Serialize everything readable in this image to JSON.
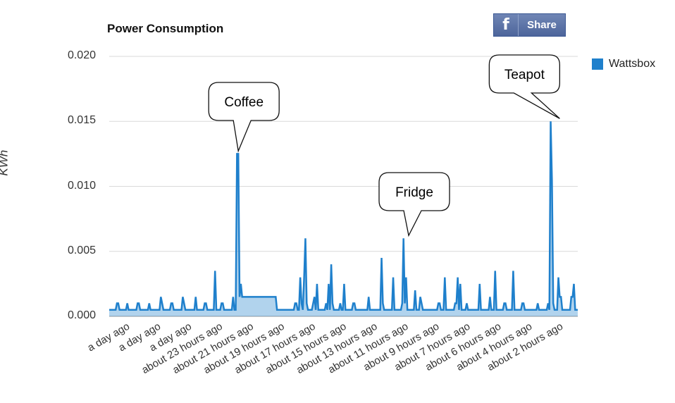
{
  "chart_data": {
    "type": "line",
    "title": "Power Consumption",
    "ylabel": "KWh",
    "xlabel": "",
    "ylim": [
      0,
      0.02
    ],
    "yticks": [
      "0.000",
      "0.005",
      "0.010",
      "0.015",
      "0.020"
    ],
    "xticks": [
      "a day ago",
      "a day ago",
      "a day ago",
      "about 23 hours ago",
      "about 21 hours ago",
      "about 19 hours ago",
      "about 17 hours ago",
      "about 15 hours ago",
      "about 13 hours ago",
      "about 11 hours ago",
      "about 9 hours ago",
      "about 7 hours ago",
      "about 6 hours ago",
      "about 4 hours ago",
      "about 2 hours ago"
    ],
    "grid": true,
    "legend_position": "top-right",
    "series": [
      {
        "name": "Wattsbox",
        "color": "#1f80cc",
        "values": [
          0.0005,
          0.0005,
          0.0005,
          0.0005,
          0.0005,
          0.0005,
          0.001,
          0.001,
          0.0005,
          0.0005,
          0.0005,
          0.0005,
          0.0005,
          0.0005,
          0.001,
          0.0005,
          0.0005,
          0.0005,
          0.0005,
          0.0005,
          0.0005,
          0.0005,
          0.001,
          0.001,
          0.0005,
          0.0005,
          0.0005,
          0.0005,
          0.0005,
          0.0005,
          0.0005,
          0.001,
          0.0005,
          0.0005,
          0.0005,
          0.0005,
          0.0005,
          0.0005,
          0.0005,
          0.0005,
          0.0015,
          0.001,
          0.0005,
          0.0005,
          0.0005,
          0.0005,
          0.0005,
          0.0005,
          0.001,
          0.001,
          0.0005,
          0.0005,
          0.0005,
          0.0005,
          0.0005,
          0.0005,
          0.0005,
          0.0015,
          0.001,
          0.0005,
          0.0005,
          0.0005,
          0.0005,
          0.0005,
          0.0005,
          0.0005,
          0.0005,
          0.0015,
          0.0005,
          0.0005,
          0.0005,
          0.0005,
          0.0005,
          0.0005,
          0.001,
          0.001,
          0.0005,
          0.0005,
          0.0005,
          0.0005,
          0.0005,
          0.0005,
          0.0035,
          0.0005,
          0.0005,
          0.0005,
          0.0005,
          0.001,
          0.001,
          0.0005,
          0.0005,
          0.0005,
          0.0005,
          0.0005,
          0.0005,
          0.0005,
          0.0015,
          0.0005,
          0.0005,
          0.0125,
          0.0125,
          0.0015,
          0.0025,
          0.0015,
          0.0015,
          0.0015,
          0.0015,
          0.0015,
          0.0015,
          0.0015,
          0.0015,
          0.0015,
          0.0015,
          0.0015,
          0.0015,
          0.0015,
          0.0015,
          0.0015,
          0.0015,
          0.0015,
          0.0015,
          0.0015,
          0.0015,
          0.0015,
          0.0015,
          0.0015,
          0.0015,
          0.0015,
          0.0015,
          0.0015,
          0.0005,
          0.0005,
          0.0005,
          0.0005,
          0.0005,
          0.0005,
          0.0005,
          0.0005,
          0.0005,
          0.0005,
          0.0005,
          0.0005,
          0.0005,
          0.0005,
          0.001,
          0.001,
          0.0005,
          0.0005,
          0.003,
          0.001,
          0.0005,
          0.003,
          0.006,
          0.001,
          0.0005,
          0.0005,
          0.0005,
          0.0005,
          0.001,
          0.0015,
          0.0005,
          0.0025,
          0.0005,
          0.0005,
          0.0005,
          0.0005,
          0.0005,
          0.0005,
          0.001,
          0.0005,
          0.0025,
          0.0005,
          0.004,
          0.001,
          0.0005,
          0.0005,
          0.0005,
          0.0005,
          0.0005,
          0.001,
          0.0005,
          0.0005,
          0.0025,
          0.0005,
          0.0005,
          0.0005,
          0.0005,
          0.0005,
          0.0005,
          0.001,
          0.001,
          0.0005,
          0.0005,
          0.0005,
          0.0005,
          0.0005,
          0.0005,
          0.0005,
          0.0005,
          0.0005,
          0.0005,
          0.0015,
          0.0005,
          0.0005,
          0.0005,
          0.0005,
          0.0005,
          0.0005,
          0.0005,
          0.0005,
          0.0005,
          0.0045,
          0.001,
          0.0005,
          0.0005,
          0.0005,
          0.0005,
          0.0005,
          0.0005,
          0.0005,
          0.003,
          0.0005,
          0.0005,
          0.0005,
          0.0005,
          0.0005,
          0.0005,
          0.001,
          0.006,
          0.001,
          0.003,
          0.0005,
          0.0005,
          0.0005,
          0.0005,
          0.0005,
          0.0005,
          0.002,
          0.0005,
          0.0005,
          0.0005,
          0.0015,
          0.001,
          0.0005,
          0.0005,
          0.0005,
          0.0005,
          0.0005,
          0.0005,
          0.0005,
          0.0005,
          0.0005,
          0.0005,
          0.0005,
          0.0005,
          0.001,
          0.001,
          0.0005,
          0.0005,
          0.0005,
          0.003,
          0.0005,
          0.0005,
          0.0005,
          0.0005,
          0.0005,
          0.0005,
          0.0005,
          0.001,
          0.001,
          0.003,
          0.0005,
          0.0025,
          0.0005,
          0.0005,
          0.0005,
          0.0005,
          0.001,
          0.0005,
          0.0005,
          0.0005,
          0.0005,
          0.0005,
          0.0005,
          0.0005,
          0.0005,
          0.0005,
          0.0025,
          0.0005,
          0.0005,
          0.0005,
          0.0005,
          0.0005,
          0.0005,
          0.0005,
          0.0015,
          0.0005,
          0.0005,
          0.0005,
          0.0035,
          0.0005,
          0.0005,
          0.0005,
          0.0005,
          0.0005,
          0.0005,
          0.001,
          0.001,
          0.0005,
          0.0005,
          0.0005,
          0.0005,
          0.0005,
          0.0035,
          0.0005,
          0.0005,
          0.0005,
          0.0005,
          0.0005,
          0.0005,
          0.001,
          0.001,
          0.0005,
          0.0005,
          0.0005,
          0.0005,
          0.0005,
          0.0005,
          0.0005,
          0.0005,
          0.0005,
          0.0005,
          0.001,
          0.0005,
          0.0005,
          0.0005,
          0.0005,
          0.0005,
          0.0005,
          0.0005,
          0.001,
          0.0005,
          0.015,
          0.0105,
          0.001,
          0.0005,
          0.0005,
          0.0005,
          0.003,
          0.0015,
          0.0015,
          0.0005,
          0.0005,
          0.0005,
          0.0005,
          0.0005,
          0.0005,
          0.0005,
          0.0015,
          0.0015,
          0.0025,
          0.0005,
          0.0005,
          0.0005
        ]
      }
    ],
    "annotations": [
      {
        "text": "Coffee",
        "x_index": 100,
        "y": 0.0125
      },
      {
        "text": "Fridge",
        "x_index": 232,
        "y": 0.006
      },
      {
        "text": "Teapot",
        "x_index": 349,
        "y": 0.015
      }
    ]
  },
  "share": {
    "icon": "facebook-f-icon",
    "label": "Share"
  }
}
